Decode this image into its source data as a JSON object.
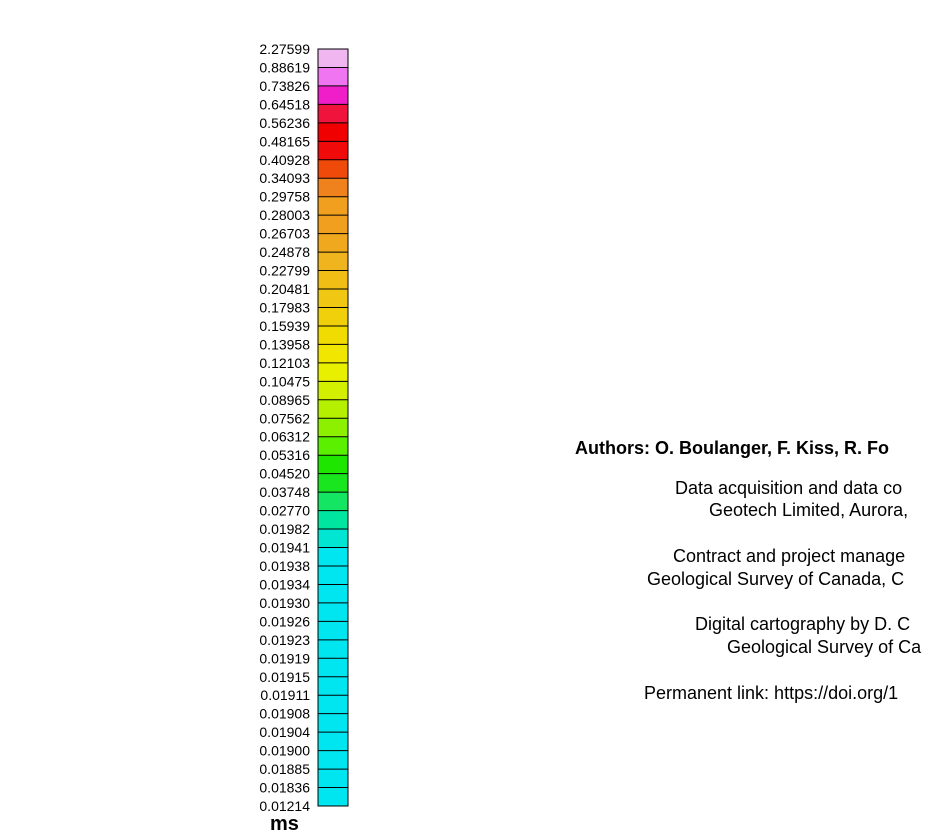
{
  "legend": {
    "labels": [
      "2.27599",
      "0.88619",
      "0.73826",
      "0.64518",
      "0.56236",
      "0.48165",
      "0.40928",
      "0.34093",
      "0.29758",
      "0.28003",
      "0.26703",
      "0.24878",
      "0.22799",
      "0.20481",
      "0.17983",
      "0.15939",
      "0.13958",
      "0.12103",
      "0.10475",
      "0.08965",
      "0.07562",
      "0.06312",
      "0.05316",
      "0.04520",
      "0.03748",
      "0.02770",
      "0.01982",
      "0.01941",
      "0.01938",
      "0.01934",
      "0.01930",
      "0.01926",
      "0.01923",
      "0.01919",
      "0.01915",
      "0.01911",
      "0.01908",
      "0.01904",
      "0.01900",
      "0.01885",
      "0.01836",
      "0.01214"
    ],
    "colors": [
      "#f0b6f0",
      "#f075f0",
      "#f01ec8",
      "#f0143c",
      "#f00000",
      "#f00a0a",
      "#f04a0a",
      "#f0821e",
      "#f0a01e",
      "#f0a01e",
      "#f0a81e",
      "#f0b41e",
      "#f0be14",
      "#f0c814",
      "#f0d00a",
      "#f0dc00",
      "#f0e600",
      "#e8f000",
      "#d2f000",
      "#b4f000",
      "#8cf000",
      "#5af000",
      "#1ee600",
      "#19e61e",
      "#14e664",
      "#00e6a0",
      "#00e6d2",
      "#00e6f0",
      "#00e6f0",
      "#00e6f0",
      "#00e6f0",
      "#00e6f0",
      "#00e6f0",
      "#00e6f0",
      "#00e6f0",
      "#00e6f0",
      "#00e6f0",
      "#00e6f0",
      "#00e6f0",
      "#00e6f0",
      "#00e6f0"
    ],
    "unit": "ms"
  },
  "credits": {
    "authors": "Authors: O. Boulanger, F. Kiss, R. Fo",
    "acquisition_line1": "Data acquisition and data co",
    "acquisition_line2": "Geotech Limited, Aurora,",
    "contract_line1": "Contract and project manage",
    "contract_line2": "Geological Survey of Canada, C",
    "cartography_line1": "Digital cartography by D. C",
    "cartography_line2": "Geological Survey of Ca",
    "permanent_link": "Permanent link: https://doi.org/1"
  }
}
